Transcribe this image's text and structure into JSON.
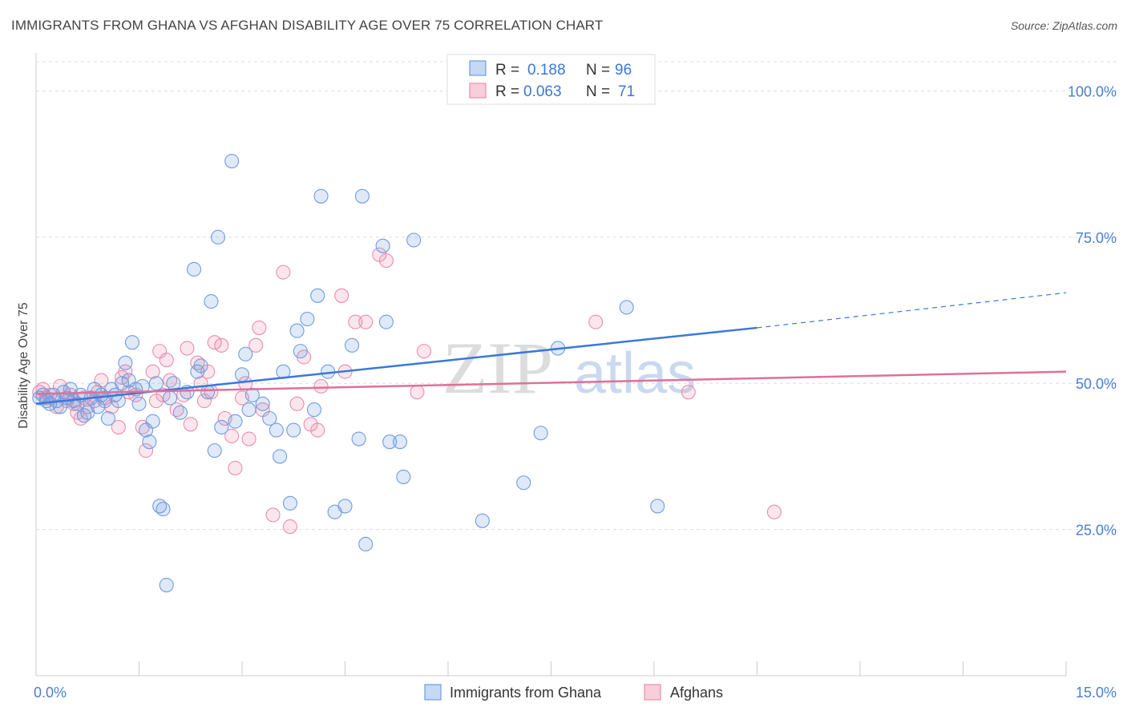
{
  "title": "IMMIGRANTS FROM GHANA VS AFGHAN DISABILITY AGE OVER 75 CORRELATION CHART",
  "source": "Source: ZipAtlas.com",
  "watermark": {
    "zip": "ZIP",
    "atlas": "atlas"
  },
  "colors": {
    "blue": "#6f9de0",
    "blue_line": "#3a78d8",
    "pink": "#ec8cab",
    "pink_line": "#e0709a"
  },
  "legend": {
    "rows": [
      {
        "r_label": "R =",
        "r_value": "0.188",
        "n_label": "N =",
        "n_value": "96"
      },
      {
        "r_label": "R =",
        "r_value": "0.063",
        "n_label": "N =",
        "n_value": "71"
      }
    ]
  },
  "chart_data": {
    "type": "scatter",
    "title": "IMMIGRANTS FROM GHANA VS AFGHAN DISABILITY AGE OVER 75 CORRELATION CHART",
    "xlabel": "",
    "ylabel": "Disability Age Over 75",
    "xlim": [
      0,
      15
    ],
    "ylim": [
      0,
      105
    ],
    "y_ticks": [
      25,
      50,
      75,
      100
    ],
    "y_tick_labels": [
      "25.0%",
      "50.0%",
      "75.0%",
      "100.0%"
    ],
    "x_tick_labels": [
      "0.0%",
      "15.0%"
    ],
    "grid": true,
    "legend_position": "top-center",
    "series": [
      {
        "name": "Immigrants from Ghana",
        "color": "#6f9de0",
        "trend": {
          "x0": 0,
          "y0": 46.5,
          "x1": 10.5,
          "y1": 59.5,
          "dash_x1": 15,
          "dash_y1": 65.5
        },
        "points": [
          [
            0.05,
            47.5
          ],
          [
            0.1,
            48
          ],
          [
            0.15,
            47
          ],
          [
            0.2,
            46.5
          ],
          [
            0.25,
            48
          ],
          [
            0.3,
            47
          ],
          [
            0.35,
            46
          ],
          [
            0.4,
            48.5
          ],
          [
            0.45,
            47.5
          ],
          [
            0.5,
            49
          ],
          [
            0.55,
            47
          ],
          [
            0.6,
            46.5
          ],
          [
            0.65,
            48
          ],
          [
            0.7,
            44.5
          ],
          [
            0.75,
            45
          ],
          [
            0.8,
            47.5
          ],
          [
            0.85,
            49
          ],
          [
            0.9,
            46
          ],
          [
            0.95,
            48
          ],
          [
            1.0,
            47
          ],
          [
            1.05,
            44
          ],
          [
            1.1,
            49
          ],
          [
            1.15,
            48
          ],
          [
            1.2,
            47
          ],
          [
            1.25,
            50
          ],
          [
            1.3,
            53.5
          ],
          [
            1.35,
            50.5
          ],
          [
            1.4,
            57
          ],
          [
            1.45,
            49
          ],
          [
            1.5,
            46.5
          ],
          [
            1.55,
            49.5
          ],
          [
            1.6,
            42
          ],
          [
            1.65,
            40
          ],
          [
            1.7,
            43.5
          ],
          [
            1.75,
            50
          ],
          [
            1.8,
            29
          ],
          [
            1.85,
            28.5
          ],
          [
            1.9,
            15.5
          ],
          [
            1.95,
            47.5
          ],
          [
            2.0,
            50
          ],
          [
            2.1,
            45
          ],
          [
            2.2,
            48.5
          ],
          [
            2.3,
            69.5
          ],
          [
            2.35,
            52
          ],
          [
            2.4,
            53
          ],
          [
            2.5,
            48.5
          ],
          [
            2.55,
            64
          ],
          [
            2.6,
            38.5
          ],
          [
            2.65,
            75
          ],
          [
            2.7,
            42.5
          ],
          [
            2.85,
            88
          ],
          [
            2.9,
            43.5
          ],
          [
            3.0,
            51.5
          ],
          [
            3.05,
            55
          ],
          [
            3.1,
            45.5
          ],
          [
            3.15,
            48
          ],
          [
            3.3,
            46.5
          ],
          [
            3.4,
            44
          ],
          [
            3.5,
            42
          ],
          [
            3.55,
            37.5
          ],
          [
            3.6,
            52
          ],
          [
            3.7,
            29.5
          ],
          [
            3.75,
            42
          ],
          [
            3.8,
            59
          ],
          [
            3.85,
            55.5
          ],
          [
            3.95,
            61
          ],
          [
            4.05,
            45.5
          ],
          [
            4.1,
            65
          ],
          [
            4.15,
            82
          ],
          [
            4.25,
            52
          ],
          [
            4.35,
            28
          ],
          [
            4.5,
            29
          ],
          [
            4.6,
            56.5
          ],
          [
            4.7,
            40.5
          ],
          [
            4.75,
            82
          ],
          [
            4.8,
            22.5
          ],
          [
            5.05,
            73.5
          ],
          [
            5.1,
            60.5
          ],
          [
            5.15,
            40
          ],
          [
            5.3,
            40
          ],
          [
            5.35,
            34
          ],
          [
            5.5,
            74.5
          ],
          [
            6.5,
            26.5
          ],
          [
            7.1,
            33
          ],
          [
            7.35,
            41.5
          ],
          [
            7.6,
            56
          ],
          [
            7.65,
            100
          ],
          [
            8.6,
            63
          ],
          [
            9.05,
            29
          ]
        ]
      },
      {
        "name": "Afghans",
        "color": "#ec8cab",
        "trend": {
          "x0": 0,
          "y0": 48.2,
          "x1": 15,
          "y1": 52
        }
      }
    ]
  },
  "afghan_points": [
    [
      0.05,
      48.5
    ],
    [
      0.1,
      49
    ],
    [
      0.15,
      47.5
    ],
    [
      0.2,
      48
    ],
    [
      0.3,
      46
    ],
    [
      0.35,
      49.5
    ],
    [
      0.45,
      47
    ],
    [
      0.5,
      48
    ],
    [
      0.55,
      46.5
    ],
    [
      0.6,
      45
    ],
    [
      0.65,
      44
    ],
    [
      0.7,
      47.5
    ],
    [
      0.75,
      46
    ],
    [
      0.85,
      47
    ],
    [
      0.9,
      48.5
    ],
    [
      0.95,
      50.5
    ],
    [
      1.0,
      47.5
    ],
    [
      1.1,
      46
    ],
    [
      1.2,
      42.5
    ],
    [
      1.25,
      51
    ],
    [
      1.3,
      52
    ],
    [
      1.35,
      48.5
    ],
    [
      1.45,
      48
    ],
    [
      1.55,
      42.5
    ],
    [
      1.6,
      38.5
    ],
    [
      1.7,
      52
    ],
    [
      1.75,
      47
    ],
    [
      1.8,
      55.5
    ],
    [
      1.85,
      48
    ],
    [
      1.9,
      54
    ],
    [
      1.95,
      50.5
    ],
    [
      2.05,
      45.5
    ],
    [
      2.15,
      48
    ],
    [
      2.2,
      56
    ],
    [
      2.25,
      43
    ],
    [
      2.35,
      53.5
    ],
    [
      2.4,
      50
    ],
    [
      2.45,
      47
    ],
    [
      2.5,
      52
    ],
    [
      2.55,
      48.5
    ],
    [
      2.6,
      57
    ],
    [
      2.7,
      56.5
    ],
    [
      2.75,
      44
    ],
    [
      2.85,
      41
    ],
    [
      2.9,
      35.5
    ],
    [
      3.0,
      47.5
    ],
    [
      3.05,
      50
    ],
    [
      3.1,
      40.5
    ],
    [
      3.2,
      56.5
    ],
    [
      3.25,
      59.5
    ],
    [
      3.3,
      45.5
    ],
    [
      3.45,
      27.5
    ],
    [
      3.6,
      69
    ],
    [
      3.7,
      25.5
    ],
    [
      3.8,
      46.5
    ],
    [
      3.9,
      54.5
    ],
    [
      4.0,
      43
    ],
    [
      4.1,
      42
    ],
    [
      4.15,
      49.5
    ],
    [
      4.45,
      65
    ],
    [
      4.5,
      52
    ],
    [
      4.65,
      60.5
    ],
    [
      4.8,
      60.5
    ],
    [
      5.0,
      72
    ],
    [
      5.1,
      71
    ],
    [
      5.55,
      48.5
    ],
    [
      5.65,
      55.5
    ],
    [
      8.15,
      60.5
    ],
    [
      9.5,
      48.5
    ],
    [
      10.75,
      28
    ]
  ],
  "bottom_legend": [
    "Immigrants from Ghana",
    "Afghans"
  ]
}
